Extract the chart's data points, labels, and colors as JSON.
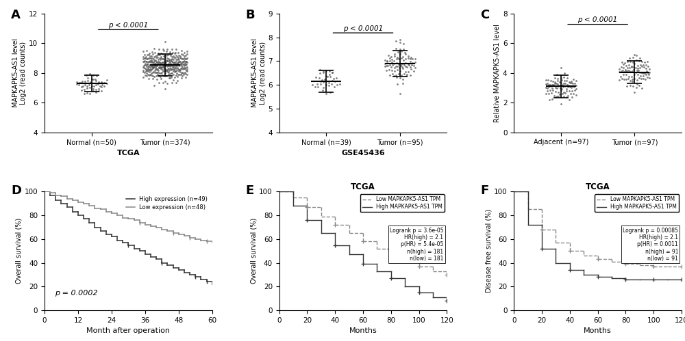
{
  "panel_A": {
    "label": "A",
    "title": "TCGA",
    "ylabel": "MAPKAPK5-AS1 level\nLog2 (read counts)",
    "groups": [
      "Normal (n=50)",
      "Tumor (n=374)"
    ],
    "means": [
      7.3,
      8.55
    ],
    "sds": [
      0.55,
      0.75
    ],
    "ylim": [
      4,
      12
    ],
    "yticks": [
      4,
      6,
      8,
      10,
      12
    ],
    "n_points": [
      50,
      374
    ],
    "pval": "p < 0.0001",
    "dot_color": "#555555",
    "dot_size": 4
  },
  "panel_B": {
    "label": "B",
    "title": "GSE45436",
    "ylabel": "MAPKAPK5-AS1 level\nLog2 (read counts)",
    "groups": [
      "Normal (n=39)",
      "Tumor (n=95)"
    ],
    "means": [
      6.15,
      6.9
    ],
    "sds": [
      0.45,
      0.55
    ],
    "ylim": [
      4,
      9
    ],
    "yticks": [
      4,
      5,
      6,
      7,
      8,
      9
    ],
    "n_points": [
      39,
      95
    ],
    "pval": "p < 0.0001",
    "dot_color": "#555555",
    "dot_size": 4
  },
  "panel_C": {
    "label": "C",
    "title": "",
    "ylabel": "Relative MAPKAPK5-AS1 level",
    "groups": [
      "Adjacent (n=97)",
      "Tumor (n=97)"
    ],
    "means": [
      3.1,
      4.05
    ],
    "sds": [
      0.75,
      0.75
    ],
    "ylim": [
      0,
      8
    ],
    "yticks": [
      0,
      2,
      4,
      6,
      8
    ],
    "n_points": [
      97,
      97
    ],
    "pval": "p < 0.0001",
    "dot_color": "#555555",
    "dot_size": 4
  },
  "panel_D": {
    "label": "D",
    "ylabel": "Overall survival (%)",
    "xlabel": "Month after operation",
    "pval": "p = 0.0002",
    "legend": [
      "High expression (n=49)",
      "Low expression (n=48)"
    ],
    "high_color": "#333333",
    "low_color": "#888888",
    "xlim": [
      0,
      60
    ],
    "ylim": [
      0,
      100
    ],
    "xticks": [
      0,
      12,
      24,
      36,
      48,
      60
    ],
    "yticks": [
      0,
      20,
      40,
      60,
      80,
      100
    ],
    "x_high": [
      0,
      2,
      4,
      6,
      8,
      10,
      12,
      14,
      16,
      18,
      20,
      22,
      24,
      26,
      28,
      30,
      32,
      34,
      36,
      38,
      40,
      42,
      44,
      46,
      48,
      50,
      52,
      54,
      56,
      58,
      60
    ],
    "y_high": [
      100,
      97,
      93,
      90,
      87,
      83,
      80,
      77,
      74,
      70,
      67,
      64,
      62,
      59,
      57,
      55,
      52,
      50,
      47,
      45,
      43,
      40,
      38,
      36,
      34,
      32,
      30,
      28,
      26,
      24,
      22
    ],
    "x_low": [
      0,
      2,
      4,
      6,
      8,
      10,
      12,
      14,
      16,
      18,
      20,
      22,
      24,
      26,
      28,
      30,
      32,
      34,
      36,
      38,
      40,
      42,
      44,
      46,
      48,
      50,
      52,
      54,
      56,
      58,
      60
    ],
    "y_low": [
      100,
      99,
      97,
      96,
      94,
      93,
      91,
      90,
      88,
      86,
      85,
      83,
      82,
      80,
      78,
      77,
      76,
      74,
      72,
      71,
      70,
      68,
      67,
      65,
      64,
      63,
      61,
      60,
      59,
      58,
      57
    ]
  },
  "panel_E": {
    "label": "E",
    "title": "TCGA",
    "ylabel": "Overall survival (%)",
    "xlabel": "Months",
    "legend_text": [
      "Low MAPKAPK5-AS1 TPM",
      "High MAPKAPK5-AS1 TPM",
      "Logrank p = 3.6e-05",
      "HR(high) = 2.1",
      "p(HR) = 5.4e-05",
      "n(high) = 181",
      "n(low) = 181"
    ],
    "high_color": "#333333",
    "low_color": "#888888",
    "xlim": [
      0,
      120
    ],
    "ylim": [
      0,
      100
    ],
    "xticks": [
      0,
      20,
      40,
      60,
      80,
      100,
      120
    ],
    "yticks": [
      0,
      20,
      40,
      60,
      80,
      100
    ],
    "x_high": [
      0,
      10,
      20,
      30,
      40,
      50,
      60,
      70,
      80,
      90,
      100,
      110,
      120
    ],
    "y_high": [
      100,
      88,
      76,
      65,
      55,
      47,
      39,
      33,
      27,
      20,
      15,
      11,
      8
    ],
    "x_low": [
      0,
      10,
      20,
      30,
      40,
      50,
      60,
      70,
      80,
      90,
      100,
      110,
      120
    ],
    "y_low": [
      100,
      95,
      87,
      79,
      72,
      65,
      58,
      52,
      46,
      41,
      37,
      33,
      30
    ]
  },
  "panel_F": {
    "label": "F",
    "title": "TCGA",
    "ylabel": "Disease free survival (%)",
    "xlabel": "Months",
    "legend_text": [
      "Low MAPKAPK5-AS1 TPM",
      "High MAPKAPK5-AS1 TPM",
      "Logrank p = 0.00085",
      "HR(high) = 2.1",
      "p(HR) = 0.0011",
      "n(high) = 91",
      "n(low) = 91"
    ],
    "high_color": "#333333",
    "low_color": "#888888",
    "xlim": [
      0,
      120
    ],
    "ylim": [
      0,
      100
    ],
    "xticks": [
      0,
      20,
      40,
      60,
      80,
      100,
      120
    ],
    "yticks": [
      0,
      20,
      40,
      60,
      80,
      100
    ],
    "x_high": [
      0,
      10,
      20,
      30,
      40,
      50,
      60,
      70,
      80,
      90,
      100,
      110,
      120
    ],
    "y_high": [
      100,
      72,
      52,
      40,
      34,
      30,
      28,
      27,
      26,
      26,
      26,
      26,
      26
    ],
    "x_low": [
      0,
      10,
      20,
      30,
      40,
      50,
      60,
      70,
      80,
      90,
      100,
      110,
      120
    ],
    "y_low": [
      100,
      85,
      68,
      57,
      50,
      46,
      43,
      41,
      39,
      38,
      37,
      37,
      37
    ]
  },
  "bg_color": "#ffffff",
  "label_fontsize": 13,
  "tick_fontsize": 7.5,
  "axis_label_fontsize": 8
}
